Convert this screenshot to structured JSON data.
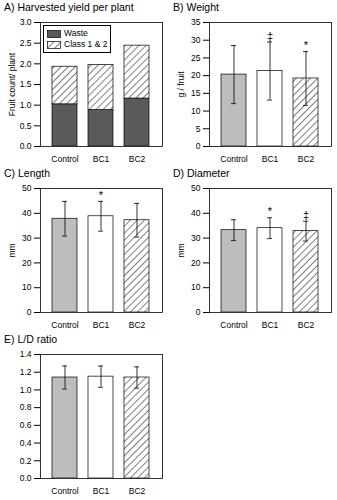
{
  "chart_data": [
    {
      "type": "bar",
      "title": "A) Harvested yield per plant",
      "ylabel": "Fruit count/ plant",
      "stacked": true,
      "legend": "top-left",
      "categories": [
        "Control",
        "BC1",
        "BC2"
      ],
      "series": [
        {
          "name": "Waste",
          "color": "#5a5a5a",
          "values": [
            1.02,
            0.88,
            1.16
          ]
        },
        {
          "name": "Class 1 & 2",
          "color": "#ffffff",
          "values": [
            0.91,
            1.09,
            1.28
          ]
        }
      ],
      "ylim": [
        0,
        3
      ],
      "yticks": [
        {
          "value": 0,
          "label": "0.0"
        },
        0.5,
        {
          "value": 1,
          "label": "1.0"
        },
        1.5,
        {
          "value": 2,
          "label": "2.0"
        },
        2.5,
        {
          "value": 3,
          "label": "3.0"
        }
      ]
    },
    {
      "type": "bar",
      "title": "B) Weight",
      "ylabel": "g / fruit",
      "categories": [
        "Control",
        "BC1",
        "BC2"
      ],
      "values": [
        20.3,
        21.3,
        19.2
      ],
      "errors": [
        8.2,
        8.2,
        7.6
      ],
      "significance": [
        null,
        "‡",
        "*"
      ],
      "colors": [
        "#bdbdbd",
        "#ffffff",
        "#ffffff"
      ],
      "ylim": [
        0,
        35
      ],
      "yticks": [
        0,
        5,
        10,
        15,
        20,
        25,
        30,
        35
      ]
    },
    {
      "type": "bar",
      "title": "C) Length",
      "ylabel": "mm",
      "categories": [
        "Control",
        "BC1",
        "BC2"
      ],
      "values": [
        37.8,
        38.8,
        37.2
      ],
      "errors": [
        7.0,
        6.0,
        6.8
      ],
      "significance": [
        null,
        "*",
        null
      ],
      "colors": [
        "#bdbdbd",
        "#ffffff",
        "#ffffff"
      ],
      "ylim": [
        0,
        50
      ],
      "yticks": [
        0,
        10,
        20,
        30,
        40,
        50
      ]
    },
    {
      "type": "bar",
      "title": "D) Diameter",
      "ylabel": "mm",
      "categories": [
        "Control",
        "BC1",
        "BC2"
      ],
      "values": [
        33.2,
        34.0,
        32.8
      ],
      "errors": [
        4.2,
        4.2,
        4.0
      ],
      "significance": [
        null,
        "*",
        "‡"
      ],
      "colors": [
        "#bdbdbd",
        "#ffffff",
        "#ffffff"
      ],
      "ylim": [
        0,
        50
      ],
      "yticks": [
        0,
        10,
        20,
        30,
        40,
        50
      ]
    },
    {
      "type": "bar",
      "title": "E) L/D ratio",
      "categories": [
        "Control",
        "BC1",
        "BC2"
      ],
      "values": [
        1.14,
        1.15,
        1.14
      ],
      "errors": [
        0.13,
        0.12,
        0.12
      ],
      "colors": [
        "#bdbdbd",
        "#ffffff",
        "#ffffff"
      ],
      "ylim": [
        0,
        1.4
      ],
      "yticks": [
        {
          "value": 0,
          "label": "0.0"
        },
        0.2,
        0.4,
        0.6,
        0.8,
        {
          "value": 1,
          "label": "1.0"
        },
        1.2,
        1.4
      ]
    }
  ]
}
